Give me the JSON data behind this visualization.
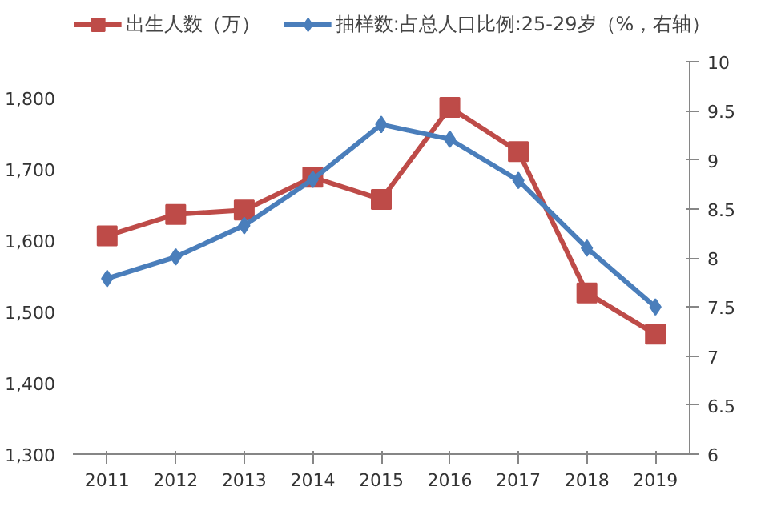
{
  "chart_data": {
    "type": "line",
    "categories": [
      "2011",
      "2012",
      "2013",
      "2014",
      "2015",
      "2016",
      "2017",
      "2018",
      "2019"
    ],
    "series": [
      {
        "name": "出生人数（万）",
        "color": "#be4b48",
        "marker": "square",
        "values": [
          1606,
          1636,
          1642,
          1688,
          1657,
          1786,
          1724,
          1526,
          1468
        ]
      },
      {
        "name": "抽样数:占总人口比例:25-29岁（%，右轴）",
        "color": "#4a7ebb",
        "marker": "diamond",
        "axis": "y2",
        "values": [
          7.79,
          8.01,
          8.33,
          8.8,
          9.36,
          9.21,
          8.79,
          8.1,
          7.5
        ]
      }
    ],
    "ylim": [
      1300,
      1850
    ],
    "yticks": [
      {
        "value": 1300,
        "label": "1,300"
      },
      {
        "value": 1400,
        "label": "1,400"
      },
      {
        "value": 1500,
        "label": "1,500"
      },
      {
        "value": 1600,
        "label": "1,600"
      },
      {
        "value": 1700,
        "label": "1,700"
      },
      {
        "value": 1800,
        "label": "1,800"
      }
    ],
    "y2lim": [
      6,
      10
    ],
    "y2ticks": [
      6,
      6.5,
      7,
      7.5,
      8,
      8.5,
      9,
      9.5,
      10
    ],
    "legend": "top",
    "grid": false
  }
}
